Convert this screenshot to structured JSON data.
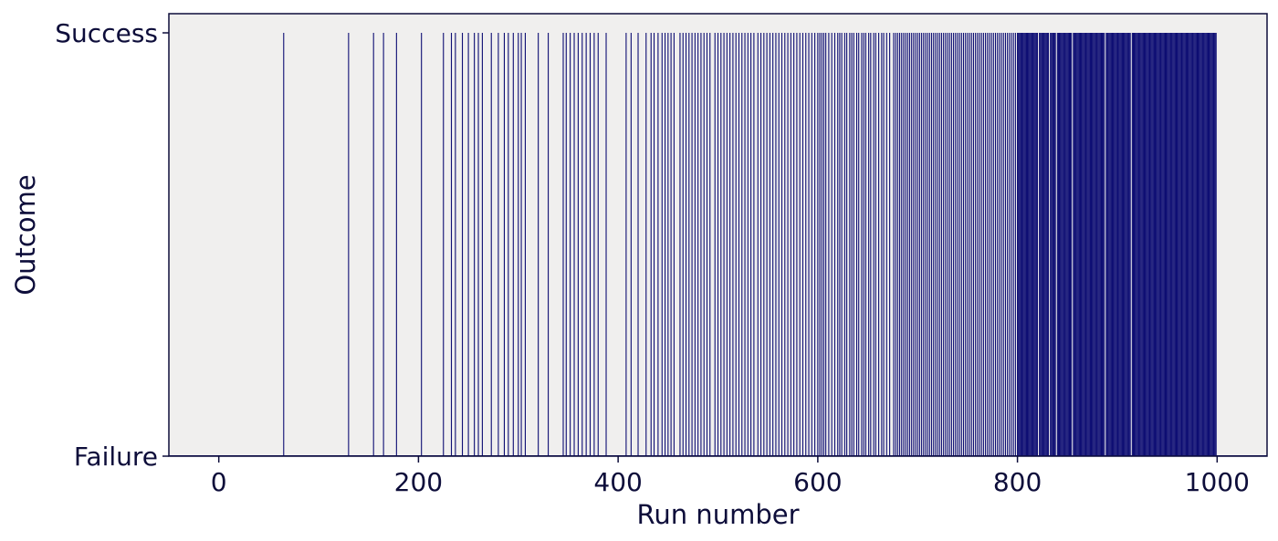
{
  "chart_data": {
    "type": "bar",
    "title": "",
    "xlabel": "Run number",
    "ylabel": "Outcome",
    "xlim": [
      -50,
      1050
    ],
    "ylim": [
      0,
      1
    ],
    "x_ticks": [
      0,
      200,
      400,
      600,
      800,
      1000
    ],
    "y_ticks": [
      {
        "value": 0,
        "label": "Failure"
      },
      {
        "value": 1,
        "label": "Success"
      }
    ],
    "grid": false,
    "legend": "none",
    "colors": {
      "success_bar": "#0d0d73",
      "plot_background": "#f0efee",
      "axis": "#0d0d3a",
      "text": "#0d0d3a"
    },
    "outcome_encoding": "1 = Success, 0 = Failure",
    "success_runs": [
      65,
      130,
      155,
      165,
      178,
      203,
      225,
      233,
      237,
      244,
      250,
      256,
      260,
      264,
      273,
      280,
      286,
      290,
      295,
      300,
      303,
      307,
      320,
      330,
      345,
      348,
      352,
      356,
      360,
      364,
      368,
      372,
      376,
      380,
      388,
      408,
      413,
      420,
      428,
      433,
      436,
      440,
      444,
      447,
      450,
      453,
      456,
      462,
      465,
      468,
      471,
      474,
      477,
      480,
      483,
      486,
      489,
      492,
      497,
      500,
      503,
      506,
      509,
      512,
      515,
      518,
      521,
      524,
      527,
      530,
      533,
      536,
      540,
      543,
      546,
      549,
      552,
      555,
      558,
      561,
      564,
      567,
      570,
      573,
      576,
      579,
      582,
      585,
      588,
      591,
      594,
      597,
      600,
      602,
      604,
      606,
      608,
      611,
      614,
      617,
      620,
      622,
      624,
      627,
      629,
      632,
      634,
      636,
      639,
      641,
      644,
      646,
      648,
      651,
      653,
      656,
      658,
      661,
      664,
      666,
      669,
      672,
      676,
      678,
      680,
      682,
      684,
      686,
      688,
      690,
      692,
      694,
      696,
      698,
      700,
      702,
      704,
      706,
      708,
      710,
      712,
      714,
      716,
      718,
      720,
      722,
      724,
      726,
      728,
      730,
      732,
      734,
      736,
      738,
      740,
      742,
      744,
      746,
      748,
      750,
      752,
      754,
      756,
      758,
      760,
      762,
      764,
      766,
      768,
      770,
      772,
      774,
      776,
      778,
      780,
      782,
      784,
      786,
      788,
      790,
      792,
      794,
      796,
      798,
      800,
      801,
      802,
      803,
      804,
      805,
      806,
      807,
      808,
      809,
      810,
      811,
      812,
      813,
      814,
      815,
      816,
      817,
      818,
      819,
      820,
      822,
      823,
      824,
      825,
      826,
      827,
      828,
      829,
      830,
      831,
      833,
      834,
      835,
      836,
      837,
      838,
      840,
      841,
      842,
      843,
      844,
      845,
      846,
      847,
      848,
      849,
      850,
      851,
      852,
      853,
      854,
      856,
      857,
      858,
      859,
      860,
      861,
      862,
      863,
      864,
      865,
      866,
      867,
      868,
      869,
      870,
      871,
      872,
      873,
      874,
      875,
      876,
      877,
      878,
      879,
      880,
      881,
      882,
      883,
      884,
      885,
      886,
      887,
      889,
      890,
      891,
      892,
      893,
      894,
      895,
      896,
      897,
      898,
      899,
      900,
      901,
      902,
      903,
      904,
      905,
      906,
      907,
      908,
      909,
      910,
      911,
      912,
      913,
      915,
      916,
      917,
      918,
      919,
      920,
      921,
      922,
      923,
      924,
      925,
      926,
      927,
      928,
      929,
      930,
      931,
      932,
      933,
      934,
      935,
      936,
      937,
      938,
      939,
      940,
      941,
      942,
      943,
      944,
      945,
      946,
      947,
      948,
      949,
      950,
      951,
      952,
      953,
      954,
      955,
      956,
      957,
      958,
      959,
      960,
      961,
      962,
      963,
      964,
      965,
      966,
      967,
      968,
      969,
      970,
      971,
      972,
      973,
      974,
      975,
      976,
      977,
      978,
      979,
      980,
      981,
      982,
      983,
      984,
      985,
      986,
      987,
      988,
      989,
      990,
      991,
      992,
      993,
      994,
      995,
      996,
      997,
      998,
      999
    ]
  }
}
